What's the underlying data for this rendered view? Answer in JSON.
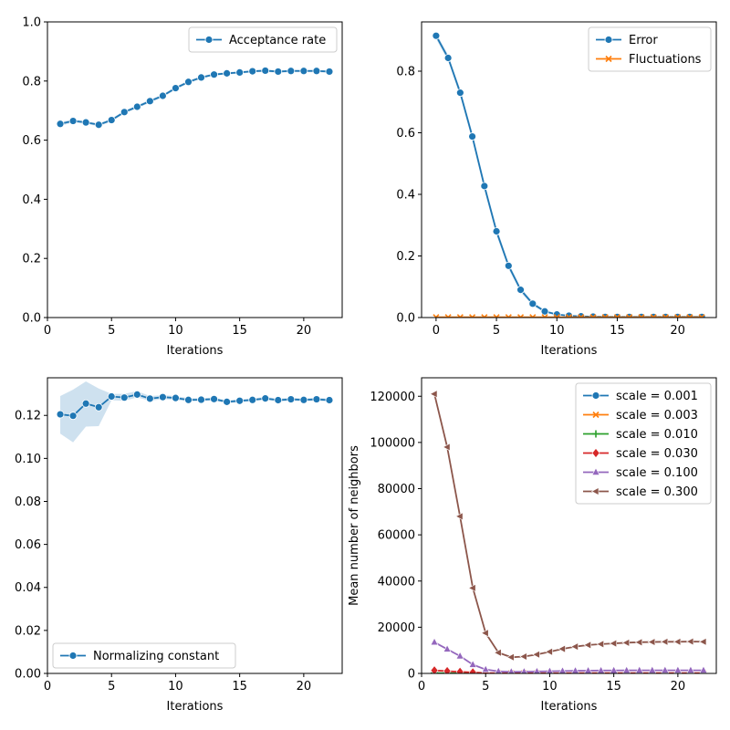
{
  "colors": {
    "blue": "#1f77b4",
    "orange": "#ff7f0e",
    "green": "#2ca02c",
    "red": "#d62728",
    "purple": "#9467bd",
    "brown": "#8c564b"
  },
  "chart_data": [
    {
      "id": "acceptance",
      "type": "line",
      "xlabel": "Iterations",
      "ylabel": "",
      "xlim": [
        0,
        23
      ],
      "ylim": [
        0,
        1.0
      ],
      "xticks": [
        0,
        5,
        10,
        15,
        20
      ],
      "yticks": [
        0.0,
        0.2,
        0.4,
        0.6,
        0.8,
        1.0
      ],
      "ytick_labels": [
        "0.0",
        "0.2",
        "0.4",
        "0.6",
        "0.8",
        "1.0"
      ],
      "legend_position": "top-right",
      "series": [
        {
          "name": "Acceptance rate",
          "color": "#1f77b4",
          "marker": "circle",
          "x": [
            1,
            2,
            3,
            4,
            5,
            6,
            7,
            8,
            9,
            10,
            11,
            12,
            13,
            14,
            15,
            16,
            17,
            18,
            19,
            20,
            21,
            22
          ],
          "y": [
            0.655,
            0.665,
            0.66,
            0.652,
            0.668,
            0.695,
            0.713,
            0.732,
            0.75,
            0.776,
            0.797,
            0.812,
            0.822,
            0.826,
            0.829,
            0.833,
            0.835,
            0.832,
            0.834,
            0.834,
            0.834,
            0.832
          ],
          "band_low": [
            0.648,
            0.66,
            0.655,
            0.647,
            0.663,
            0.69,
            0.708,
            0.727,
            0.745,
            0.771,
            0.792,
            0.808,
            0.818,
            0.822,
            0.825,
            0.829,
            0.831,
            0.828,
            0.83,
            0.83,
            0.83,
            0.828
          ],
          "band_high": [
            0.662,
            0.67,
            0.665,
            0.657,
            0.673,
            0.7,
            0.718,
            0.737,
            0.755,
            0.781,
            0.802,
            0.816,
            0.826,
            0.83,
            0.833,
            0.837,
            0.839,
            0.836,
            0.838,
            0.838,
            0.838,
            0.836
          ]
        }
      ]
    },
    {
      "id": "error",
      "type": "line",
      "xlabel": "Iterations",
      "ylabel": "",
      "xlim": [
        -1.2,
        23.2
      ],
      "ylim": [
        0,
        0.96
      ],
      "xticks": [
        0,
        5,
        10,
        15,
        20
      ],
      "yticks": [
        0.0,
        0.2,
        0.4,
        0.6,
        0.8
      ],
      "ytick_labels": [
        "0.0",
        "0.2",
        "0.4",
        "0.6",
        "0.8"
      ],
      "legend_position": "top-right",
      "series": [
        {
          "name": "Error",
          "color": "#1f77b4",
          "marker": "circle",
          "x": [
            0,
            1,
            2,
            3,
            4,
            5,
            6,
            7,
            8,
            9,
            10,
            11,
            12,
            13,
            14,
            15,
            16,
            17,
            18,
            19,
            20,
            21,
            22
          ],
          "y": [
            0.915,
            0.843,
            0.73,
            0.588,
            0.427,
            0.28,
            0.168,
            0.09,
            0.045,
            0.02,
            0.01,
            0.006,
            0.004,
            0.003,
            0.002,
            0.002,
            0.002,
            0.002,
            0.002,
            0.002,
            0.002,
            0.002,
            0.002
          ],
          "band_low": [
            0.905,
            0.833,
            0.718,
            0.575,
            0.414,
            0.268,
            0.158,
            0.082,
            0.039,
            0.016,
            0.007,
            0.004,
            0.002,
            0.002,
            0.001,
            0.001,
            0.001,
            0.001,
            0.001,
            0.001,
            0.001,
            0.001,
            0.001
          ],
          "band_high": [
            0.925,
            0.853,
            0.742,
            0.601,
            0.44,
            0.292,
            0.178,
            0.098,
            0.051,
            0.024,
            0.013,
            0.008,
            0.006,
            0.004,
            0.003,
            0.003,
            0.003,
            0.003,
            0.003,
            0.003,
            0.003,
            0.003,
            0.003
          ]
        },
        {
          "name": "Fluctuations",
          "color": "#ff7f0e",
          "marker": "x",
          "x": [
            0,
            1,
            2,
            3,
            4,
            5,
            6,
            7,
            8,
            9,
            10,
            11,
            12,
            13,
            14,
            15,
            16,
            17,
            18,
            19,
            20,
            21,
            22
          ],
          "y": [
            0.001,
            0.001,
            0.001,
            0.001,
            0.001,
            0.001,
            0.001,
            0.001,
            0.001,
            0.001,
            0.001,
            0.001,
            0.001,
            0.001,
            0.001,
            0.001,
            0.001,
            0.001,
            0.001,
            0.001,
            0.001,
            0.001,
            0.001
          ]
        }
      ]
    },
    {
      "id": "normalizing",
      "type": "line",
      "xlabel": "Iterations",
      "ylabel": "",
      "xlim": [
        0,
        23
      ],
      "ylim": [
        0,
        0.1375
      ],
      "xticks": [
        0,
        5,
        10,
        15,
        20
      ],
      "yticks": [
        0.0,
        0.02,
        0.04,
        0.06,
        0.08,
        0.1,
        0.12
      ],
      "ytick_labels": [
        "0.00",
        "0.02",
        "0.04",
        "0.06",
        "0.08",
        "0.10",
        "0.12"
      ],
      "legend_position": "bottom-left",
      "series": [
        {
          "name": "Normalizing constant",
          "color": "#1f77b4",
          "marker": "circle",
          "x": [
            1,
            2,
            3,
            4,
            5,
            6,
            7,
            8,
            9,
            10,
            11,
            12,
            13,
            14,
            15,
            16,
            17,
            18,
            19,
            20,
            21,
            22
          ],
          "y": [
            0.1205,
            0.1198,
            0.1255,
            0.1238,
            0.1288,
            0.1283,
            0.1297,
            0.1278,
            0.1285,
            0.1281,
            0.1272,
            0.1273,
            0.1276,
            0.1263,
            0.1268,
            0.1272,
            0.1279,
            0.1271,
            0.1275,
            0.1272,
            0.1275,
            0.1271
          ],
          "band_low": [
            0.1115,
            0.1075,
            0.1148,
            0.115,
            0.127,
            0.1268,
            0.1284,
            0.1268,
            0.1276,
            0.1272,
            0.1265,
            0.1266,
            0.1269,
            0.1256,
            0.1261,
            0.1265,
            0.1272,
            0.1264,
            0.1268,
            0.1265,
            0.1268,
            0.1264
          ],
          "band_high": [
            0.129,
            0.132,
            0.1358,
            0.1325,
            0.13,
            0.13,
            0.1313,
            0.129,
            0.1294,
            0.129,
            0.128,
            0.128,
            0.1283,
            0.127,
            0.1275,
            0.1279,
            0.1286,
            0.1278,
            0.1282,
            0.1279,
            0.1282,
            0.1278
          ]
        }
      ]
    },
    {
      "id": "neighbors",
      "type": "line",
      "xlabel": "Iterations",
      "ylabel": "Mean number of neighbors",
      "xlim": [
        0,
        23
      ],
      "ylim": [
        0,
        128000
      ],
      "xticks": [
        0,
        5,
        10,
        15,
        20
      ],
      "yticks": [
        0,
        20000,
        40000,
        60000,
        80000,
        100000,
        120000
      ],
      "ytick_labels": [
        "0",
        "20000",
        "40000",
        "60000",
        "80000",
        "100000",
        "120000"
      ],
      "legend_position": "top-right",
      "series": [
        {
          "name": "scale = 0.001",
          "color": "#1f77b4",
          "marker": "circle",
          "x": [
            1,
            2,
            3,
            4,
            5,
            6,
            7,
            8,
            9,
            10,
            11,
            12,
            13,
            14,
            15,
            16,
            17,
            18,
            19,
            20,
            21,
            22
          ],
          "y": [
            2,
            2,
            1,
            1,
            1,
            1,
            1,
            1,
            1,
            1,
            1,
            1,
            1,
            1,
            1,
            1,
            1,
            1,
            1,
            1,
            1,
            1
          ]
        },
        {
          "name": "scale = 0.003",
          "color": "#ff7f0e",
          "marker": "x",
          "x": [
            1,
            2,
            3,
            4,
            5,
            6,
            7,
            8,
            9,
            10,
            11,
            12,
            13,
            14,
            15,
            16,
            17,
            18,
            19,
            20,
            21,
            22
          ],
          "y": [
            40,
            30,
            20,
            12,
            8,
            5,
            4,
            4,
            4,
            5,
            5,
            5,
            5,
            5,
            5,
            5,
            5,
            5,
            5,
            5,
            5,
            5
          ]
        },
        {
          "name": "scale = 0.010",
          "color": "#2ca02c",
          "marker": "plus",
          "x": [
            1,
            2,
            3,
            4,
            5,
            6,
            7,
            8,
            9,
            10,
            11,
            12,
            13,
            14,
            15,
            16,
            17,
            18,
            19,
            20,
            21,
            22
          ],
          "y": [
            150,
            110,
            80,
            45,
            20,
            10,
            8,
            8,
            9,
            10,
            11,
            12,
            12,
            12,
            13,
            13,
            13,
            13,
            13,
            13,
            13,
            13
          ]
        },
        {
          "name": "scale = 0.030",
          "color": "#d62728",
          "marker": "diamond",
          "x": [
            1,
            2,
            3,
            4,
            5,
            6,
            7,
            8,
            9,
            10,
            11,
            12,
            13,
            14,
            15,
            16,
            17,
            18,
            19,
            20,
            21,
            22
          ],
          "y": [
            1300,
            1000,
            700,
            450,
            200,
            90,
            70,
            70,
            80,
            90,
            110,
            120,
            125,
            130,
            130,
            135,
            135,
            135,
            135,
            135,
            135,
            135
          ]
        },
        {
          "name": "scale = 0.100",
          "color": "#9467bd",
          "marker": "triangle-up",
          "x": [
            1,
            2,
            3,
            4,
            5,
            6,
            7,
            8,
            9,
            10,
            11,
            12,
            13,
            14,
            15,
            16,
            17,
            18,
            19,
            20,
            21,
            22
          ],
          "y": [
            13500,
            10500,
            7500,
            3800,
            1700,
            900,
            700,
            750,
            850,
            950,
            1050,
            1150,
            1200,
            1250,
            1280,
            1300,
            1320,
            1330,
            1340,
            1340,
            1340,
            1340
          ]
        },
        {
          "name": "scale = 0.300",
          "color": "#8c564b",
          "marker": "triangle-left",
          "x": [
            1,
            2,
            3,
            4,
            5,
            6,
            7,
            8,
            9,
            10,
            11,
            12,
            13,
            14,
            15,
            16,
            17,
            18,
            19,
            20,
            21,
            22
          ],
          "y": [
            121000,
            98000,
            68000,
            37000,
            17500,
            9000,
            7000,
            7300,
            8200,
            9400,
            10600,
            11600,
            12300,
            12700,
            13000,
            13300,
            13500,
            13600,
            13700,
            13700,
            13800,
            13700
          ]
        }
      ]
    }
  ]
}
